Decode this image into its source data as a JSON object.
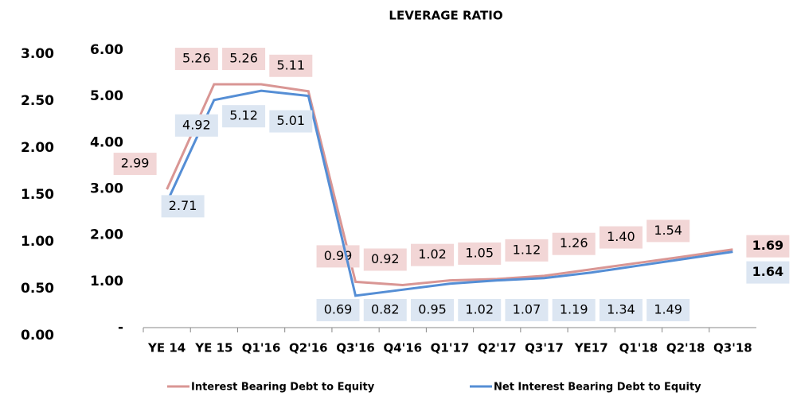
{
  "chart_data": {
    "type": "line",
    "title": "LEVERAGE RATIO",
    "categories": [
      "YE 14",
      "YE 15",
      "Q1'16",
      "Q2'16",
      "Q3'16",
      "Q4'16",
      "Q1'17",
      "Q2'17",
      "Q3'17",
      "YE17",
      "Q1'18",
      "Q2'18",
      "Q3'18"
    ],
    "series": [
      {
        "name": "Interest Bearing Debt to Equity",
        "color": "#d99694",
        "values": [
          2.99,
          5.26,
          5.26,
          5.11,
          0.99,
          0.92,
          1.02,
          1.05,
          1.12,
          1.26,
          1.4,
          1.54,
          1.69
        ],
        "value_labels": [
          "2.99",
          "5.26",
          "5.26",
          "5.11",
          "0.99",
          "0.92",
          "1.02",
          "1.05",
          "1.12",
          "1.26",
          "1.40",
          "1.54",
          "1.69"
        ]
      },
      {
        "name": "Net Interest Bearing Debt to Equity",
        "color": "#558ed5",
        "values": [
          2.71,
          4.92,
          5.12,
          5.01,
          0.69,
          0.82,
          0.95,
          1.02,
          1.07,
          1.19,
          1.34,
          1.49,
          1.64
        ],
        "value_labels": [
          "2.71",
          "4.92",
          "5.12",
          "5.01",
          "0.69",
          "0.82",
          "0.95",
          "1.02",
          "1.07",
          "1.19",
          "1.34",
          "1.49",
          "1.64"
        ]
      }
    ],
    "ylim": [
      0,
      6
    ],
    "yticks": [
      {
        "value": 0,
        "label": "-"
      },
      {
        "value": 1,
        "label": "1.00"
      },
      {
        "value": 2,
        "label": "2.00"
      },
      {
        "value": 3,
        "label": "3.00"
      },
      {
        "value": 4,
        "label": "4.00"
      },
      {
        "value": 5,
        "label": "5.00"
      },
      {
        "value": 6,
        "label": "6.00"
      }
    ],
    "y2lim": [
      0,
      3
    ],
    "y2ticks": [
      {
        "value": 0,
        "label": "0.00"
      },
      {
        "value": 0.5,
        "label": "0.50"
      },
      {
        "value": 1,
        "label": "1.00"
      },
      {
        "value": 1.5,
        "label": "1.50"
      },
      {
        "value": 2,
        "label": "2.00"
      },
      {
        "value": 2.5,
        "label": "2.50"
      },
      {
        "value": 3,
        "label": "3.00"
      }
    ]
  }
}
